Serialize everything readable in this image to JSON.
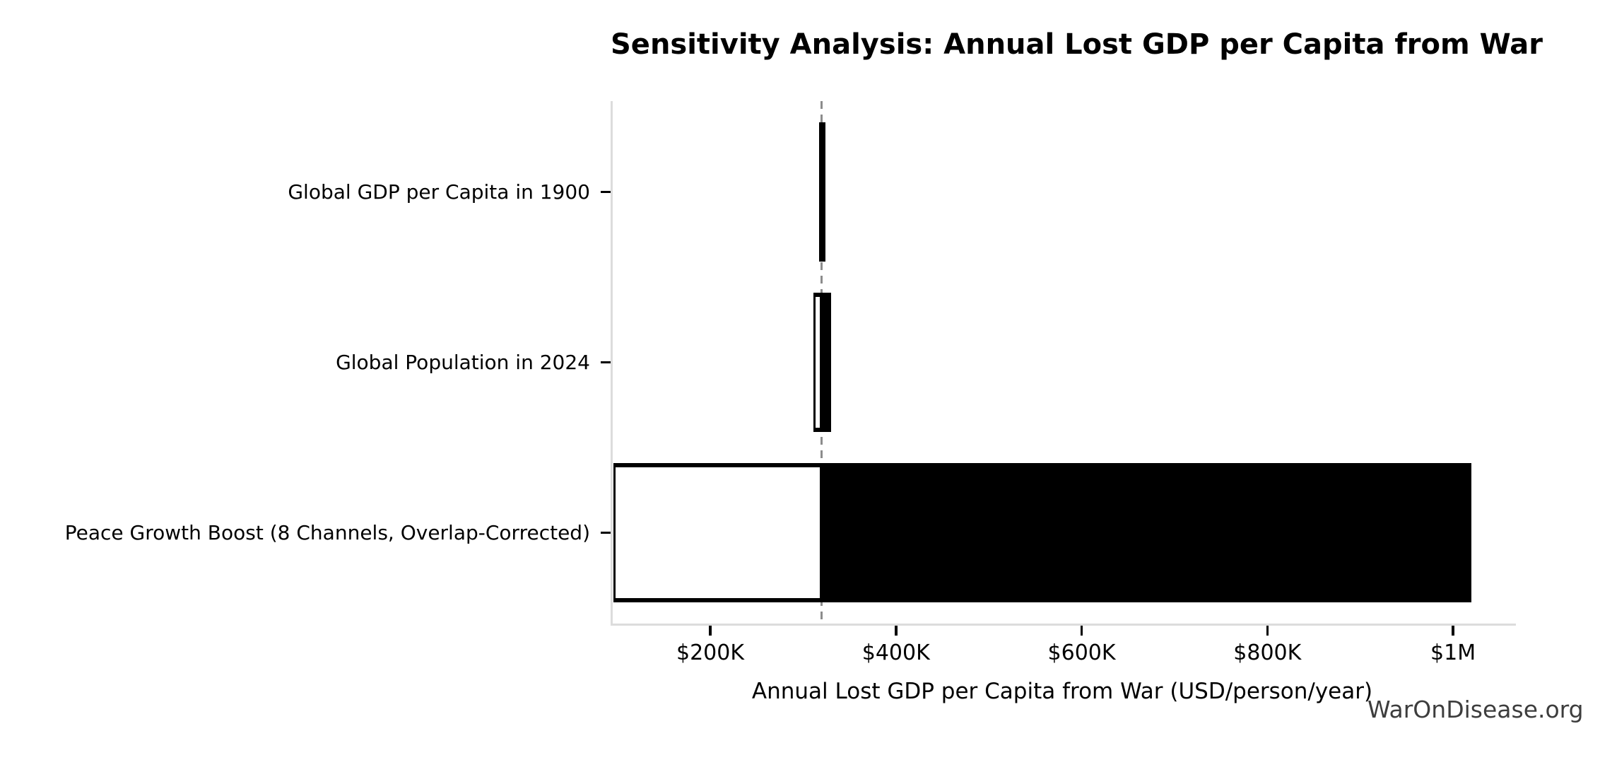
{
  "chart_data": {
    "type": "tornado-bar",
    "title": "Sensitivity Analysis: Annual Lost GDP per Capita from War",
    "xlabel": "Annual Lost GDP per Capita from War (USD/person/year)",
    "ylabel": "",
    "watermark": "WarOnDisease.org",
    "orientation": "horizontal",
    "grid": false,
    "legend": null,
    "baseline_value": 320000,
    "xlim": [
      92670,
      1065400
    ],
    "x_ticks": [
      {
        "label": "$200K",
        "value": 200000
      },
      {
        "label": "$400K",
        "value": 400000
      },
      {
        "label": "$600K",
        "value": 600000
      },
      {
        "label": "$800K",
        "value": 800000
      },
      {
        "label": "$1M",
        "value": 1000000
      }
    ],
    "rows": [
      {
        "label": "Global GDP per Capita in 1900",
        "low": 317000,
        "high": 324000
      },
      {
        "label": "Global Population in 2024",
        "low": 311000,
        "high": 330000
      },
      {
        "label": "Peace Growth Boost (8 Channels, Overlap-Corrected)",
        "low": 96000,
        "high": 1020000
      }
    ],
    "colors": {
      "bar_high_fill": "#000000",
      "bar_low_fill": "#ffffff",
      "bar_edge": "#000000",
      "baseline_line": "#8c8c8c",
      "spine": "#dcdcdc",
      "tick_mark": "#000000",
      "text": "#000000",
      "watermark": "#3d3d3d"
    }
  }
}
